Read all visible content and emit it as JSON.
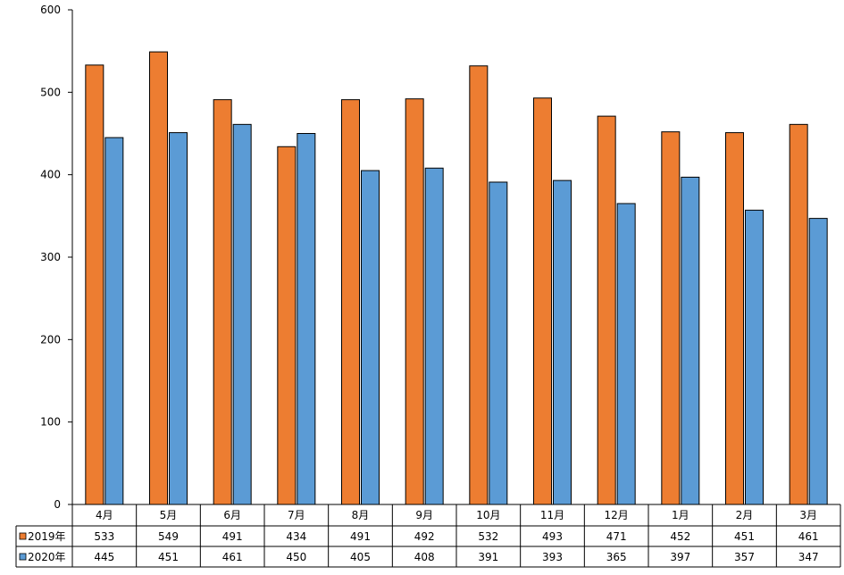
{
  "chart_data": {
    "type": "bar",
    "categories": [
      "4月",
      "5月",
      "6月",
      "7月",
      "8月",
      "9月",
      "10月",
      "11月",
      "12月",
      "1月",
      "2月",
      "3月"
    ],
    "series": [
      {
        "name": "2019年",
        "color": "#ed7d31",
        "values": [
          533,
          549,
          491,
          434,
          491,
          492,
          532,
          493,
          471,
          452,
          451,
          461
        ]
      },
      {
        "name": "2020年",
        "color": "#5b9bd5",
        "values": [
          445,
          451,
          461,
          450,
          405,
          408,
          391,
          393,
          365,
          397,
          357,
          347
        ]
      }
    ],
    "ylim": [
      0,
      600
    ],
    "yticks": [
      0,
      100,
      200,
      300,
      400,
      500,
      600
    ],
    "data_table": true,
    "legend_placement": "left of data table rows"
  }
}
